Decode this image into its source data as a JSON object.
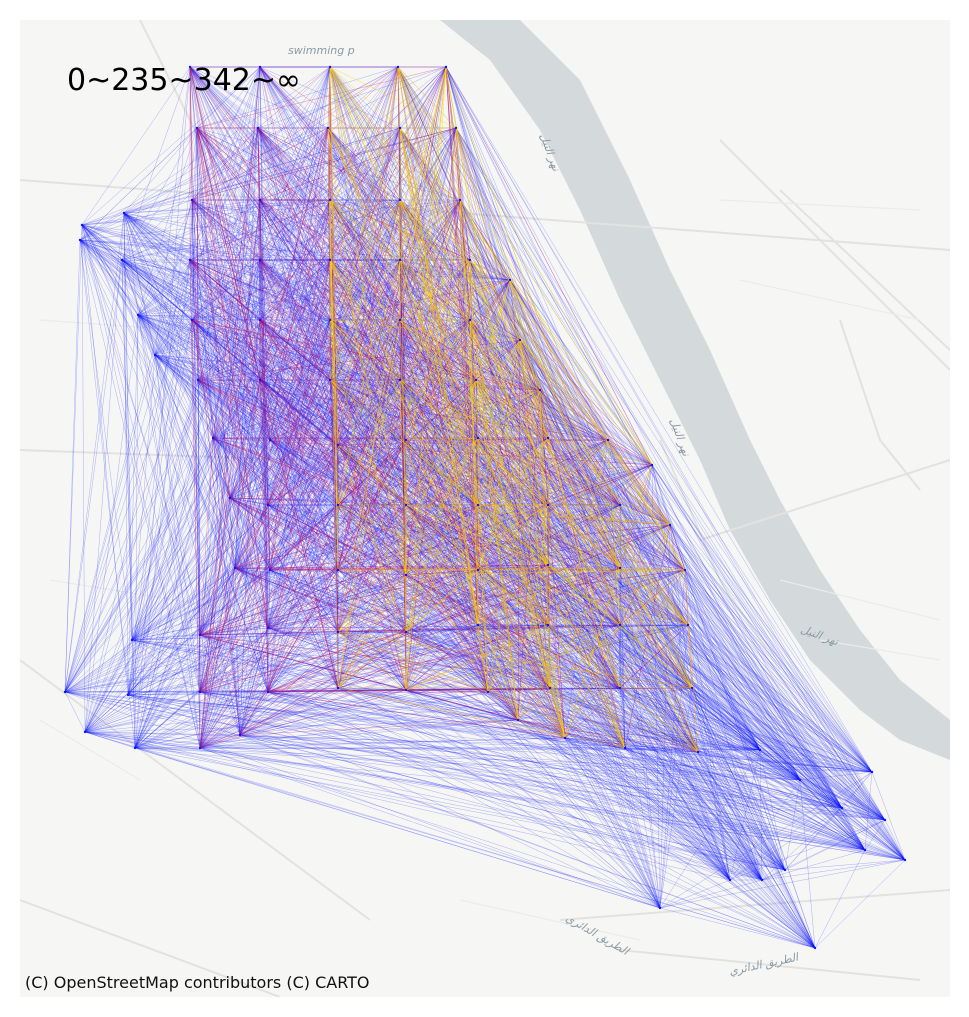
{
  "legend": {
    "title": "0~235~342~∞"
  },
  "attribution": {
    "text": "(C) OpenStreetMap contributors (C) CARTO"
  },
  "basemap": {
    "labels": {
      "swimming": "swimming p",
      "river_1": "نهر النيل",
      "river_2": "نهر النيل",
      "river_3": "نهر النيل",
      "ring_road_1": "الطريق الدائري",
      "ring_road_2": "الطريق الدائري"
    }
  },
  "flow_colors": {
    "low": "#0a14ff",
    "mid": "#d3125a",
    "high": "#ffd500"
  },
  "flow_classes": [
    "0~235",
    "235~342",
    "342~∞"
  ]
}
